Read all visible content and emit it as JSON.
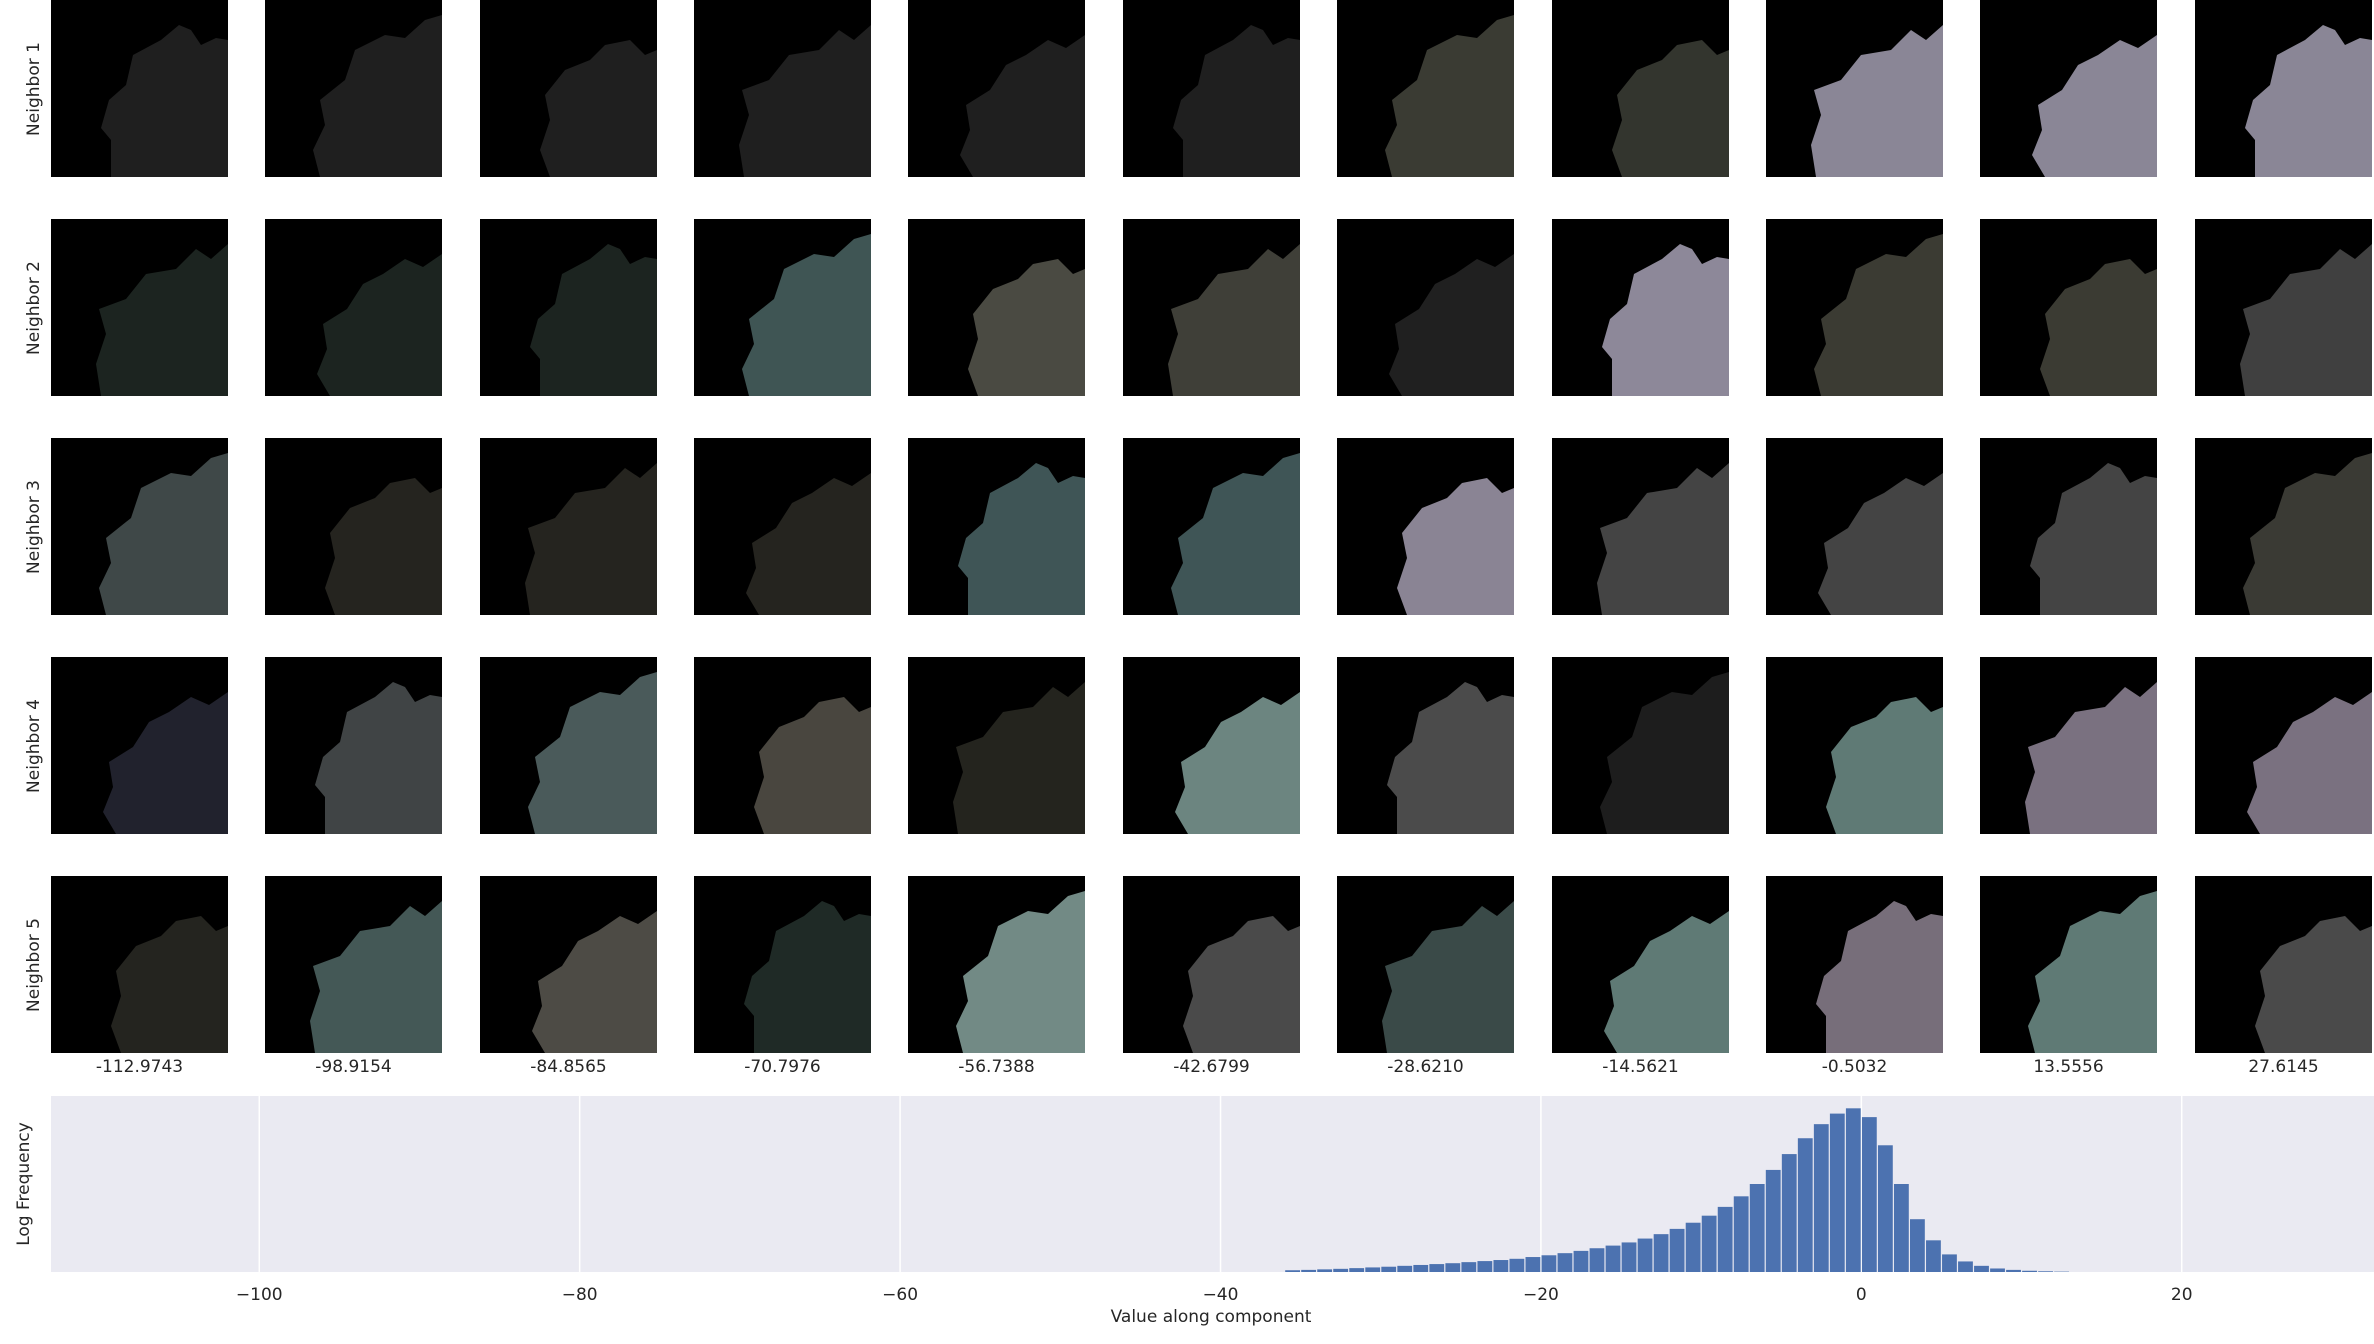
{
  "figure": {
    "row_labels": [
      "Neighbor 1",
      "Neighbor 2",
      "Neighbor 3",
      "Neighbor 4",
      "Neighbor 5"
    ],
    "column_values": [
      "-112.9743",
      "-98.9154",
      "-84.8565",
      "-70.7976",
      "-56.7388",
      "-42.6799",
      "-28.6210",
      "-14.5621",
      "-0.5032",
      "13.5556",
      "27.6145"
    ],
    "tile_colors": [
      [
        "#1f1f1f",
        "#1f1f1f",
        "#1f1f1f",
        "#1f1f1f",
        "#1f1f1f",
        "#1f1f1f",
        "#3a3b33",
        "#33352e",
        "#8a8696",
        "#8a8696",
        "#8a8696"
      ],
      [
        "#1c2420",
        "#1c2420",
        "#1c2420",
        "#3f5554",
        "#4a4a42",
        "#3f3f38",
        "#202020",
        "#8d8899",
        "#3b3b33",
        "#3b3b33",
        "#404040"
      ],
      [
        "#3f4848",
        "#25241f",
        "#25241f",
        "#25241f",
        "#3f5556",
        "#3f5556",
        "#8a8494",
        "#444444",
        "#444444",
        "#444444",
        "#3a3a34"
      ],
      [
        "#21222d",
        "#404445",
        "#4a5a5a",
        "#49463f",
        "#24241e",
        "#6c8580",
        "#4b4b4b",
        "#1d1d1d",
        "#5f7a75",
        "#7a7180",
        "#7a7180"
      ],
      [
        "#24241f",
        "#445856",
        "#4d4b45",
        "#1f2a26",
        "#728a85",
        "#4a4a4a",
        "#3a4a48",
        "#5f7a75",
        "#776e7a",
        "#5f7a75",
        "#4a4a4a"
      ]
    ]
  },
  "chart_data": {
    "type": "bar",
    "xlabel": "Value along component",
    "ylabel": "Log Frequency",
    "xlim": [
      -113,
      32
    ],
    "ylim": [
      0,
      1.0
    ],
    "xticks": [
      -100,
      -80,
      -60,
      -40,
      -20,
      0,
      20
    ],
    "xtick_labels": [
      "−100",
      "−80",
      "−60",
      "−40",
      "−20",
      "0",
      "20"
    ],
    "background": "#eaeaf2",
    "bar_color": "#4c72b0",
    "grid": "vertical",
    "bins": [
      -36,
      -35,
      -34,
      -33,
      -32,
      -31,
      -30,
      -29,
      -28,
      -27,
      -26,
      -25,
      -24,
      -23,
      -22,
      -21,
      -20,
      -19,
      -18,
      -17,
      -16,
      -15,
      -14,
      -13,
      -12,
      -11,
      -10,
      -9,
      -8,
      -7,
      -6,
      -5,
      -4,
      -3,
      -2,
      -1,
      0,
      1,
      2,
      3,
      4,
      5,
      6,
      7,
      8,
      9,
      10,
      11,
      12
    ],
    "values": [
      0.01,
      0.012,
      0.015,
      0.018,
      0.022,
      0.026,
      0.03,
      0.035,
      0.04,
      0.045,
      0.05,
      0.056,
      0.062,
      0.068,
      0.075,
      0.085,
      0.095,
      0.107,
      0.12,
      0.135,
      0.15,
      0.168,
      0.19,
      0.215,
      0.245,
      0.28,
      0.32,
      0.37,
      0.43,
      0.5,
      0.58,
      0.67,
      0.76,
      0.84,
      0.9,
      0.93,
      0.88,
      0.72,
      0.5,
      0.3,
      0.18,
      0.1,
      0.06,
      0.035,
      0.02,
      0.012,
      0.007,
      0.004,
      0.002
    ]
  }
}
